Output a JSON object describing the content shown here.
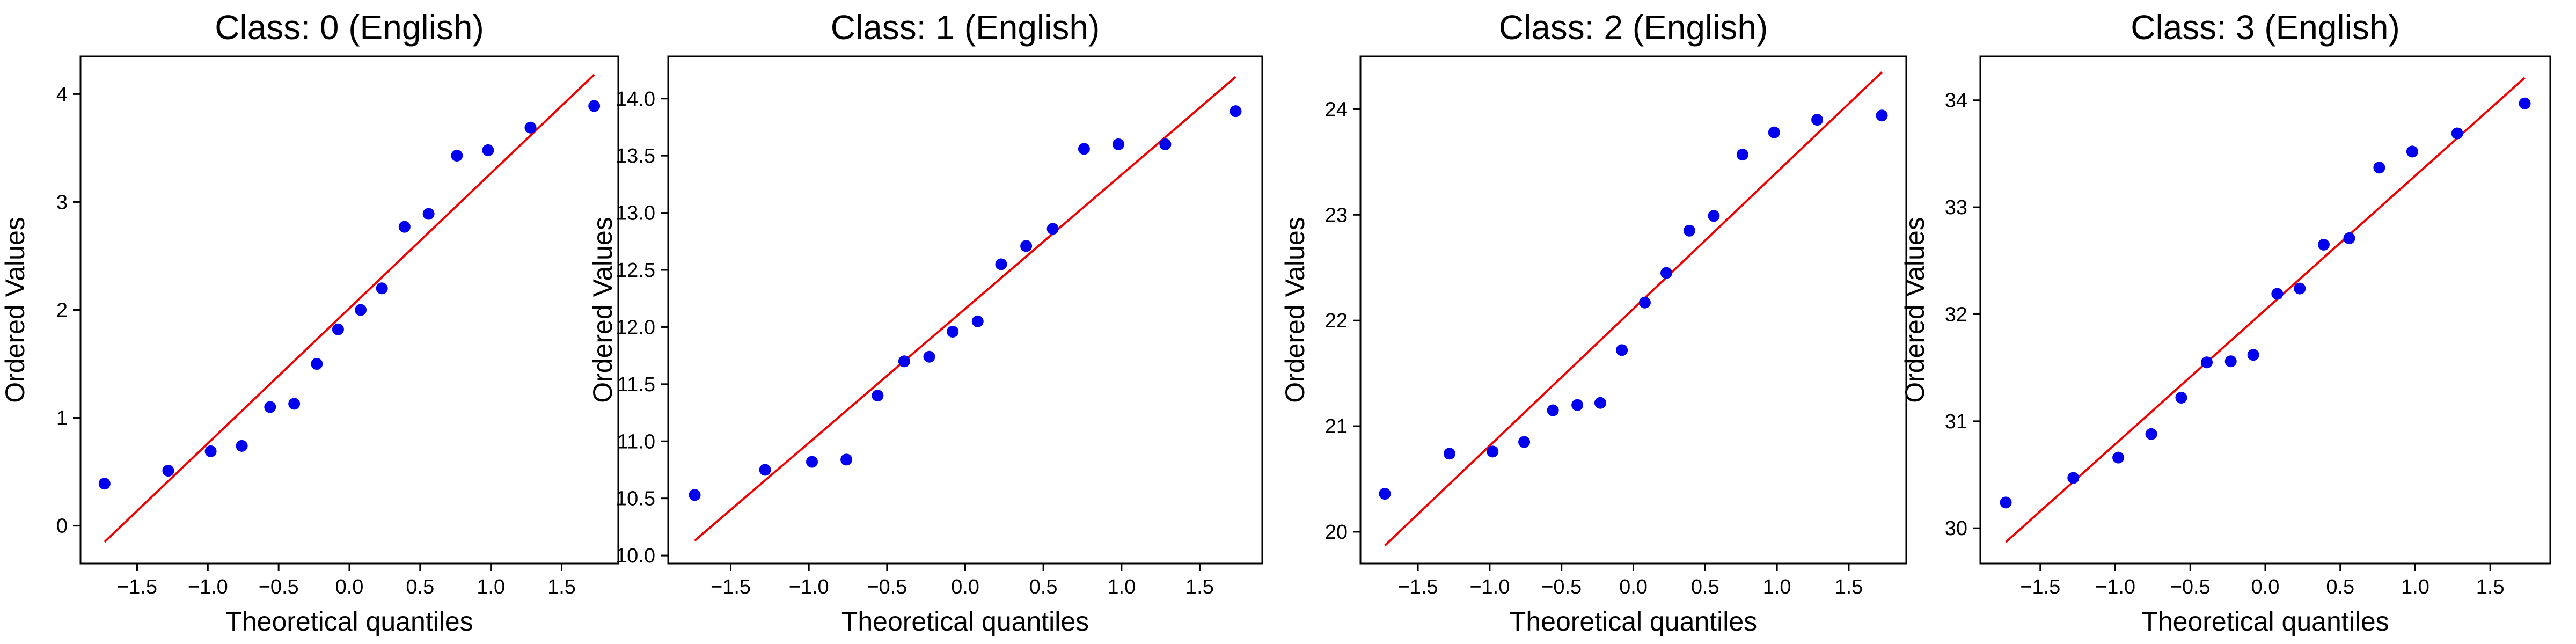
{
  "chart_data": [
    {
      "type": "scatter",
      "title": "Class: 0 (English)",
      "xlabel": "Theoretical quantiles",
      "ylabel": "Ordered Values",
      "xlim": [
        -1.9,
        1.9
      ],
      "ylim": [
        -0.35,
        4.35
      ],
      "xticks": [
        -1.5,
        -1.0,
        -0.5,
        0.0,
        0.5,
        1.0,
        1.5
      ],
      "xtick_labels": [
        "−1.5",
        "−1.0",
        "−0.5",
        "0.0",
        "0.5",
        "1.0",
        "1.5"
      ],
      "yticks": [
        0,
        1,
        2,
        3,
        4
      ],
      "ytick_labels": [
        "0",
        "1",
        "2",
        "3",
        "4"
      ],
      "grid": false,
      "marker_color": "#0000ee",
      "line_color": "#ee0000",
      "series": [
        {
          "x": [
            -1.73,
            -1.28,
            -0.98,
            -0.76,
            -0.56,
            -0.39,
            -0.23,
            -0.08,
            0.08,
            0.23,
            0.39,
            0.56,
            0.76,
            0.98,
            1.28,
            1.73
          ],
          "y": [
            0.39,
            0.51,
            0.69,
            0.74,
            1.1,
            1.13,
            1.5,
            1.82,
            2.0,
            2.2,
            2.77,
            2.89,
            3.43,
            3.48,
            3.69,
            3.89
          ]
        }
      ],
      "fit_line": {
        "x": [
          -1.73,
          1.73
        ],
        "y": [
          -0.15,
          4.18
        ]
      }
    },
    {
      "type": "scatter",
      "title": "Class: 1 (English)",
      "xlabel": "Theoretical quantiles",
      "ylabel": "Ordered Values",
      "xlim": [
        -1.9,
        1.9
      ],
      "ylim": [
        9.93,
        14.37
      ],
      "xticks": [
        -1.5,
        -1.0,
        -0.5,
        0.0,
        0.5,
        1.0,
        1.5
      ],
      "xtick_labels": [
        "−1.5",
        "−1.0",
        "−0.5",
        "0.0",
        "0.5",
        "1.0",
        "1.5"
      ],
      "yticks": [
        10.0,
        10.5,
        11.0,
        11.5,
        12.0,
        12.5,
        13.0,
        13.5,
        14.0
      ],
      "ytick_labels": [
        "10.0",
        "10.5",
        "11.0",
        "11.5",
        "12.0",
        "12.5",
        "13.0",
        "13.5",
        "14.0"
      ],
      "grid": false,
      "marker_color": "#0000ee",
      "line_color": "#ee0000",
      "series": [
        {
          "x": [
            -1.73,
            -1.28,
            -0.98,
            -0.76,
            -0.56,
            -0.39,
            -0.23,
            -0.08,
            0.08,
            0.23,
            0.39,
            0.56,
            0.76,
            0.98,
            1.28,
            1.73
          ],
          "y": [
            10.53,
            10.75,
            10.82,
            10.84,
            11.4,
            11.7,
            11.74,
            11.96,
            12.05,
            12.55,
            12.71,
            12.86,
            13.56,
            13.6,
            13.6,
            13.89
          ]
        }
      ],
      "fit_line": {
        "x": [
          -1.73,
          1.73
        ],
        "y": [
          10.13,
          14.19
        ]
      }
    },
    {
      "type": "scatter",
      "title": "Class: 2 (English)",
      "xlabel": "Theoretical quantiles",
      "ylabel": "Ordered Values",
      "xlim": [
        -1.9,
        1.9
      ],
      "ylim": [
        19.7,
        24.5
      ],
      "xticks": [
        -1.5,
        -1.0,
        -0.5,
        0.0,
        0.5,
        1.0,
        1.5
      ],
      "xtick_labels": [
        "−1.5",
        "−1.0",
        "−0.5",
        "0.0",
        "0.5",
        "1.0",
        "1.5"
      ],
      "yticks": [
        20,
        21,
        22,
        23,
        24
      ],
      "ytick_labels": [
        "20",
        "21",
        "22",
        "23",
        "24"
      ],
      "grid": false,
      "marker_color": "#0000ee",
      "line_color": "#ee0000",
      "series": [
        {
          "x": [
            -1.73,
            -1.28,
            -0.98,
            -0.76,
            -0.56,
            -0.39,
            -0.23,
            -0.08,
            0.08,
            0.23,
            0.39,
            0.56,
            0.76,
            0.98,
            1.28,
            1.73
          ],
          "y": [
            20.36,
            20.74,
            20.76,
            20.85,
            21.15,
            21.2,
            21.22,
            21.72,
            22.17,
            22.45,
            22.85,
            22.99,
            23.57,
            23.78,
            23.9,
            23.94
          ]
        }
      ],
      "fit_line": {
        "x": [
          -1.73,
          1.73
        ],
        "y": [
          19.87,
          24.35
        ]
      }
    },
    {
      "type": "scatter",
      "title": "Class: 3 (English)",
      "xlabel": "Theoretical quantiles",
      "ylabel": "Ordered Values",
      "xlim": [
        -1.9,
        1.9
      ],
      "ylim": [
        29.67,
        34.41
      ],
      "xticks": [
        -1.5,
        -1.0,
        -0.5,
        0.0,
        0.5,
        1.0,
        1.5
      ],
      "xtick_labels": [
        "−1.5",
        "−1.0",
        "−0.5",
        "0.0",
        "0.5",
        "1.0",
        "1.5"
      ],
      "yticks": [
        30,
        31,
        32,
        33,
        34
      ],
      "ytick_labels": [
        "30",
        "31",
        "32",
        "33",
        "34"
      ],
      "grid": false,
      "marker_color": "#0000ee",
      "line_color": "#ee0000",
      "series": [
        {
          "x": [
            -1.73,
            -1.28,
            -0.98,
            -0.76,
            -0.56,
            -0.39,
            -0.23,
            -0.08,
            0.08,
            0.23,
            0.39,
            0.56,
            0.76,
            0.98,
            1.28,
            1.73
          ],
          "y": [
            30.24,
            30.47,
            30.66,
            30.88,
            31.22,
            31.55,
            31.56,
            31.62,
            32.19,
            32.24,
            32.65,
            32.71,
            33.37,
            33.52,
            33.69,
            33.97
          ]
        }
      ],
      "fit_line": {
        "x": [
          -1.73,
          1.73
        ],
        "y": [
          29.87,
          34.21
        ]
      }
    }
  ]
}
